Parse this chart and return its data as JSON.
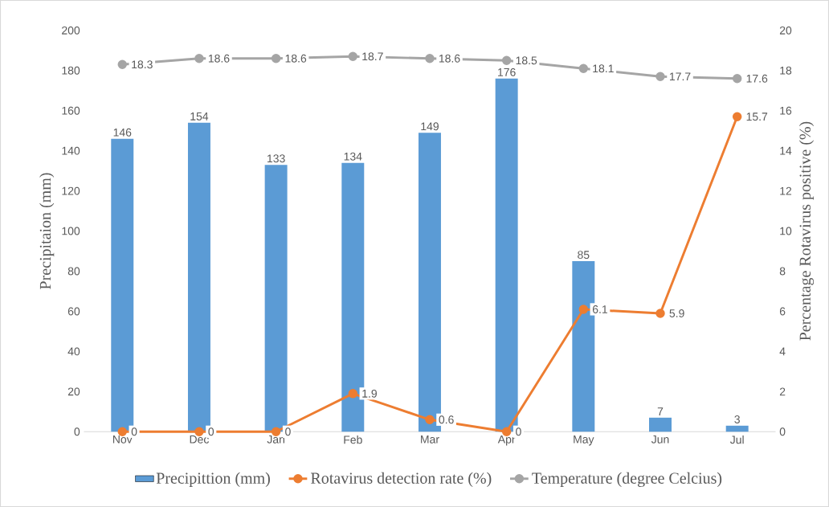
{
  "chart_data": {
    "type": "bar",
    "ylabel": "Precipitaion (mm)",
    "y2label": "Percentage Rotavirus positive (%)",
    "categories": [
      "Nov",
      "Dec",
      "Jan",
      "Feb",
      "Mar",
      "Apr",
      "May",
      "Jun",
      "Jul"
    ],
    "series": [
      {
        "name": "Precipittion (mm)",
        "color": "#5b9bd5",
        "values": [
          146,
          154,
          133,
          134,
          149,
          176,
          85,
          7,
          3
        ]
      },
      {
        "name": "Rotavirus detection rate (%)",
        "type": "line",
        "axis": "y2",
        "color": "#ed7d31",
        "values": [
          0,
          0,
          0,
          1.9,
          0.6,
          0,
          6.1,
          5.9,
          15.7
        ]
      },
      {
        "name": "Temperature (degree Celcius)",
        "type": "line",
        "axis": "y2",
        "color": "#a5a5a5",
        "values": [
          18.3,
          18.6,
          18.6,
          18.7,
          18.6,
          18.5,
          18.1,
          17.7,
          17.6
        ]
      }
    ],
    "ylim": [
      0,
      200
    ],
    "yticks": [
      0,
      20,
      40,
      60,
      80,
      100,
      120,
      140,
      160,
      180,
      200
    ],
    "y2lim": [
      0,
      20
    ],
    "y2ticks": [
      0,
      2,
      4,
      6,
      8,
      10,
      12,
      14,
      16,
      18,
      20
    ],
    "data_labels": true,
    "legend": "bottom",
    "grid": false,
    "marker": "circle",
    "line_style": "solid"
  }
}
